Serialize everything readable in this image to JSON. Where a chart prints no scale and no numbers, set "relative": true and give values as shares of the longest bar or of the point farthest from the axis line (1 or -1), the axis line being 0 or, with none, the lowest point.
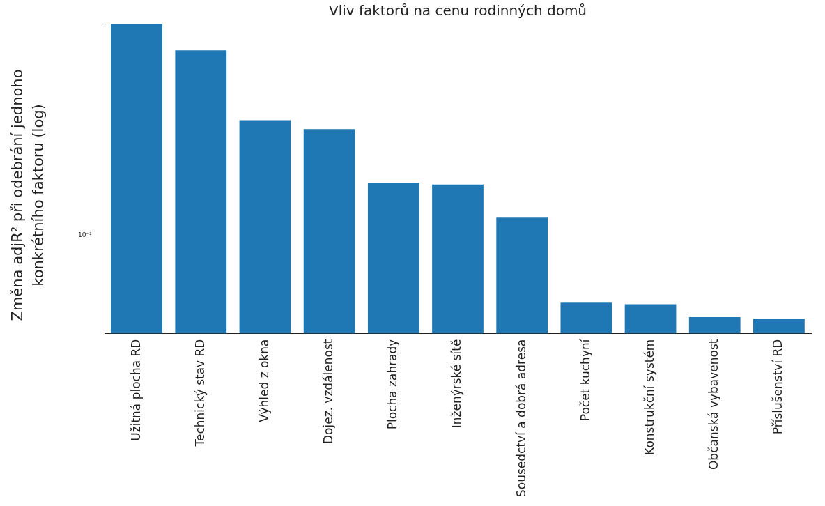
{
  "chart_data": {
    "type": "bar",
    "title": "Vliv faktorů na cenu rodinných domů",
    "ylabel": "Změna adjR² při odebrání jednoho konkrétního faktoru (log)",
    "categories": [
      "Užitná plocha RD",
      "Technický stav RD",
      "Výhled z okna",
      "Dojez. vzdálenost",
      "Plocha zahrady",
      "Inženýrské sítě",
      "Sousedctví a dobrá adresa",
      "Počet kuchyní",
      "Konstrukční systém",
      "Občanská vybavenost",
      "Příslušenství RD"
    ],
    "values": [
      1,
      0.916,
      0.69,
      0.661,
      0.487,
      0.482,
      0.375,
      0.1,
      0.095,
      0.053,
      0.048
    ],
    "color": "#1f77b4",
    "relative": true,
    "grid": false,
    "legend": false,
    "annotations": [
      "10⁻²"
    ]
  }
}
